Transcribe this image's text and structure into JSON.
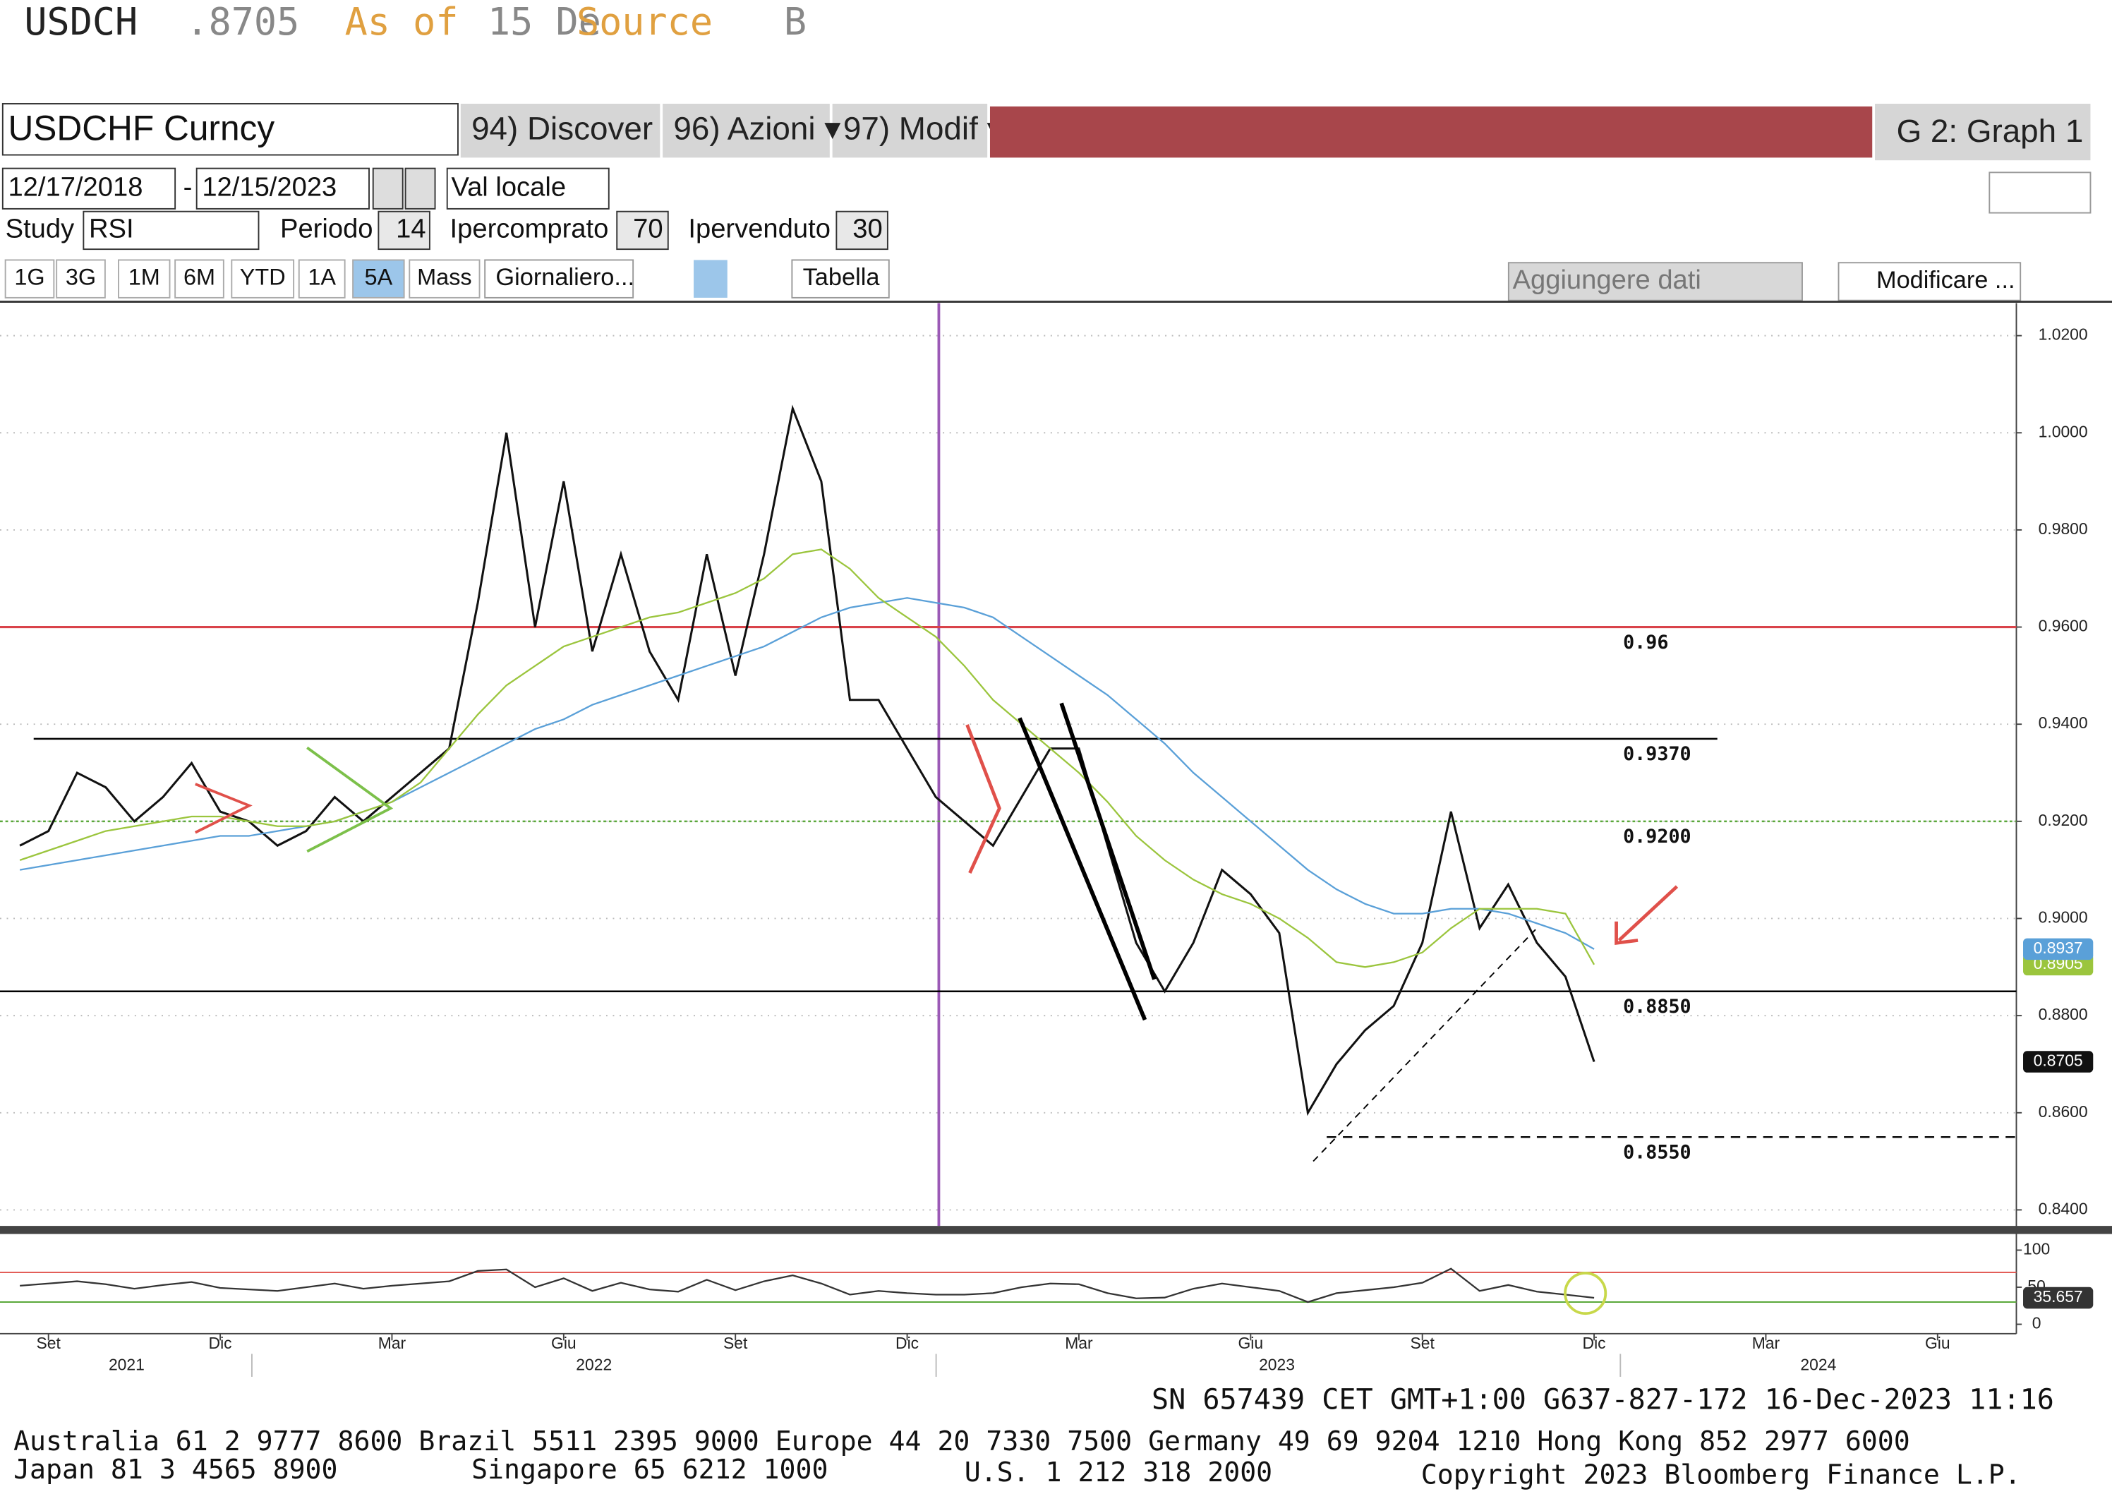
{
  "header": {
    "symbol": "USDCH",
    "price": ".8705",
    "as_of": "As of",
    "date": "15 De",
    "source": "Source",
    "source_tail": "B"
  },
  "toolbar": {
    "security": "USDCHF Curncy",
    "menus": [
      "94) Discover",
      "96) Azioni ▾",
      "97) Modif ▾"
    ],
    "graph": "G 2: Graph 1",
    "start_date": "12/17/2018",
    "date_sep": "-",
    "end_date": "12/15/2023",
    "currency": "Val locale",
    "study_label": "Study",
    "study": "RSI",
    "period_label": "Periodo",
    "period": 14,
    "overbought_label": "Ipercomprato",
    "overbought": 70,
    "oversold_label": "Ipervenduto",
    "oversold": 30,
    "ranges": [
      "1G",
      "3G",
      "1M",
      "6M",
      "YTD",
      "1A",
      "5A",
      "Mass"
    ],
    "active_range": "5A",
    "frequency": "Giornaliero...",
    "table": "Tabella",
    "add_data": "Aggiungere dati",
    "modify": "Modificare ..."
  },
  "chart_data": [
    {
      "type": "line",
      "categories": [
        null,
        "Set",
        null,
        null,
        null,
        null,
        null,
        "Dic",
        null,
        null,
        null,
        null,
        null,
        "Mar",
        null,
        null,
        null,
        null,
        null,
        "Giu",
        null,
        null,
        null,
        null,
        null,
        "Set",
        null,
        null,
        null,
        null,
        null,
        "Dic",
        null,
        null,
        null,
        null,
        null,
        "Mar",
        null,
        null,
        null,
        null,
        null,
        "Giu",
        null,
        null,
        null,
        null,
        null,
        "Set",
        null,
        null,
        null,
        null,
        null,
        "Dic",
        null,
        null,
        null,
        null,
        null,
        "Mar",
        null,
        null,
        null,
        null,
        null,
        "Giu",
        null,
        null,
        null
      ],
      "x_years": [
        "2021",
        "2022",
        "2023",
        "2024"
      ],
      "series": [
        {
          "color": "#111111",
          "values": [
            0.915,
            0.918,
            0.93,
            0.927,
            0.92,
            0.925,
            0.932,
            0.922,
            0.92,
            0.915,
            0.918,
            0.925,
            0.92,
            0.925,
            0.93,
            0.935,
            0.965,
            1.0,
            0.96,
            0.99,
            0.955,
            0.975,
            0.955,
            0.945,
            0.975,
            0.95,
            0.975,
            1.005,
            0.99,
            0.945,
            0.945,
            0.935,
            0.925,
            0.92,
            0.915,
            0.925,
            0.935,
            0.935,
            0.915,
            0.895,
            0.885,
            0.895,
            0.91,
            0.905,
            0.897,
            0.86,
            0.87,
            0.877,
            0.882,
            0.895,
            0.922,
            0.898,
            0.907,
            0.895,
            0.888,
            0.8705,
            null,
            null,
            null,
            null,
            null,
            null,
            null,
            null,
            null,
            null,
            null,
            null,
            null,
            null,
            null
          ]
        },
        {
          "color": "#5aa0d8",
          "values": [
            0.91,
            0.911,
            0.912,
            0.913,
            0.914,
            0.915,
            0.916,
            0.917,
            0.917,
            0.918,
            0.919,
            0.92,
            0.922,
            0.924,
            0.927,
            0.93,
            0.933,
            0.936,
            0.939,
            0.941,
            0.944,
            0.946,
            0.948,
            0.95,
            0.952,
            0.954,
            0.956,
            0.959,
            0.962,
            0.964,
            0.965,
            0.966,
            0.965,
            0.964,
            0.962,
            0.958,
            0.954,
            0.95,
            0.946,
            0.941,
            0.936,
            0.93,
            0.925,
            0.92,
            0.915,
            0.91,
            0.906,
            0.903,
            0.901,
            0.901,
            0.902,
            0.902,
            0.901,
            0.899,
            0.897,
            0.8937,
            null,
            null,
            null,
            null,
            null,
            null,
            null,
            null,
            null,
            null,
            null,
            null,
            null,
            null,
            null
          ]
        },
        {
          "color": "#9bc53d",
          "values": [
            0.912,
            0.914,
            0.916,
            0.918,
            0.919,
            0.92,
            0.921,
            0.921,
            0.92,
            0.919,
            0.919,
            0.92,
            0.922,
            0.924,
            0.928,
            0.935,
            0.942,
            0.948,
            0.952,
            0.956,
            0.958,
            0.96,
            0.962,
            0.963,
            0.965,
            0.967,
            0.97,
            0.975,
            0.976,
            0.972,
            0.966,
            0.962,
            0.958,
            0.952,
            0.945,
            0.94,
            0.935,
            0.93,
            0.924,
            0.917,
            0.912,
            0.908,
            0.905,
            0.903,
            0.9,
            0.896,
            0.891,
            0.89,
            0.891,
            0.893,
            0.898,
            0.902,
            0.902,
            0.902,
            0.901,
            0.8905,
            null,
            null,
            null,
            null,
            null,
            null,
            null,
            null,
            null,
            null,
            null,
            null,
            null,
            null,
            null
          ]
        }
      ],
      "ylim": [
        0.8367,
        1.0267
      ],
      "yticks": [
        {
          "value": 0.84,
          "label": "0.8400"
        },
        {
          "value": 0.86,
          "label": "0.8600"
        },
        {
          "value": 0.88,
          "label": "0.8800"
        },
        {
          "value": 0.9,
          "label": "0.9000"
        },
        {
          "value": 0.92,
          "label": "0.9200"
        },
        {
          "value": 0.94,
          "label": "0.9400"
        },
        {
          "value": 0.96,
          "label": "0.9600"
        },
        {
          "value": 0.98,
          "label": "0.9800"
        },
        {
          "value": 1.0,
          "label": "1.0000"
        },
        {
          "value": 1.02,
          "label": "1.0200"
        }
      ],
      "grid": true,
      "levels": [
        {
          "value": 0.96,
          "label": "0.96",
          "color": "#d9434a",
          "dash": "solid"
        },
        {
          "value": 0.937,
          "label": "0.9370",
          "color": "#000000",
          "dash": "solid"
        },
        {
          "value": 0.92,
          "label": "0.9200",
          "color": "#5aa83a",
          "dash": "dotted"
        },
        {
          "value": 0.885,
          "label": "0.8850",
          "color": "#000000",
          "dash": "solid"
        },
        {
          "value": 0.855,
          "label": "0.8550",
          "color": "#000000",
          "dash": "dashed"
        }
      ]
    },
    {
      "type": "line",
      "series": [
        {
          "color": "#333333",
          "values": [
            52,
            55,
            58,
            54,
            48,
            53,
            57,
            49,
            47,
            45,
            50,
            55,
            48,
            52,
            55,
            58,
            72,
            74,
            50,
            62,
            45,
            56,
            47,
            44,
            60,
            46,
            58,
            66,
            55,
            40,
            45,
            42,
            40,
            40,
            42,
            50,
            55,
            54,
            42,
            35,
            36,
            48,
            55,
            50,
            45,
            30,
            42,
            46,
            50,
            56,
            75,
            45,
            53,
            44,
            40,
            35.657,
            null,
            null,
            null,
            null,
            null,
            null,
            null,
            null,
            null,
            null,
            null,
            null,
            null,
            null,
            null
          ]
        }
      ],
      "ylim": [
        -12.7,
        123.6
      ],
      "yticks": [
        0,
        50,
        100
      ]
    }
  ],
  "footer": {
    "session": "SN 657439 CET  GMT+1:00 G637-827-172 16-Dec-2023 11:16",
    "contacts": [
      "Australia 61 2 9777 8600 Brazil 5511 2395 9000 Europe 44 20 7330 7500 Germany 49 69 9204 1210 Hong Kong 852 2977 6000",
      "Japan 81 3 4565 8900",
      "Singapore 65 6212 1000",
      "U.S. 1 212 318 2000",
      "Copyright 2023 Bloomberg Finance L.P."
    ]
  }
}
